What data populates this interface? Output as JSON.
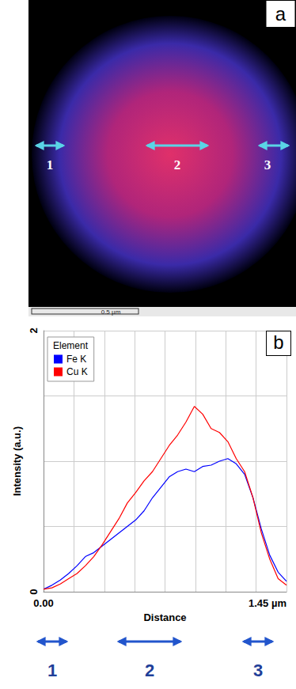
{
  "panel_a": {
    "label": "a",
    "scale_bar": "0.5 µm",
    "regions": [
      "1",
      "2",
      "3"
    ]
  },
  "chart_data": {
    "label": "b",
    "type": "line",
    "x_label": "Distance",
    "y_label": "Intensity (a.u.)",
    "legend_title": "Element",
    "x": [
      0,
      0.05,
      0.1,
      0.15,
      0.2,
      0.25,
      0.3,
      0.35,
      0.4,
      0.45,
      0.5,
      0.55,
      0.6,
      0.65,
      0.7,
      0.75,
      0.8,
      0.85,
      0.9,
      0.95,
      1.0,
      1.05,
      1.1,
      1.15,
      1.2,
      1.25,
      1.3,
      1.35,
      1.4,
      1.45
    ],
    "series": [
      {
        "name": "Fe K",
        "color": "#0000ff",
        "values": [
          0.02,
          0.05,
          0.09,
          0.14,
          0.2,
          0.27,
          0.3,
          0.35,
          0.4,
          0.45,
          0.5,
          0.55,
          0.62,
          0.72,
          0.8,
          0.88,
          0.92,
          0.94,
          0.92,
          0.96,
          0.97,
          1.0,
          1.02,
          0.98,
          0.9,
          0.72,
          0.48,
          0.28,
          0.15,
          0.08
        ]
      },
      {
        "name": "Cu K",
        "color": "#ff0000",
        "values": [
          0.02,
          0.03,
          0.06,
          0.1,
          0.14,
          0.2,
          0.27,
          0.36,
          0.46,
          0.56,
          0.68,
          0.76,
          0.85,
          0.92,
          1.02,
          1.12,
          1.2,
          1.3,
          1.42,
          1.36,
          1.25,
          1.22,
          1.15,
          1.02,
          0.92,
          0.72,
          0.45,
          0.25,
          0.1,
          0.05
        ]
      }
    ],
    "xlim": [
      0,
      1.45
    ],
    "ylim": [
      0,
      2
    ],
    "xticks": [
      {
        "value": 0,
        "label": "0.00"
      },
      {
        "value": 1.45,
        "label": "1.45 µm"
      }
    ],
    "yticks": [
      0,
      2
    ],
    "grid": true,
    "legend": "upper left"
  },
  "bottom_labels": [
    "1",
    "2",
    "3"
  ]
}
